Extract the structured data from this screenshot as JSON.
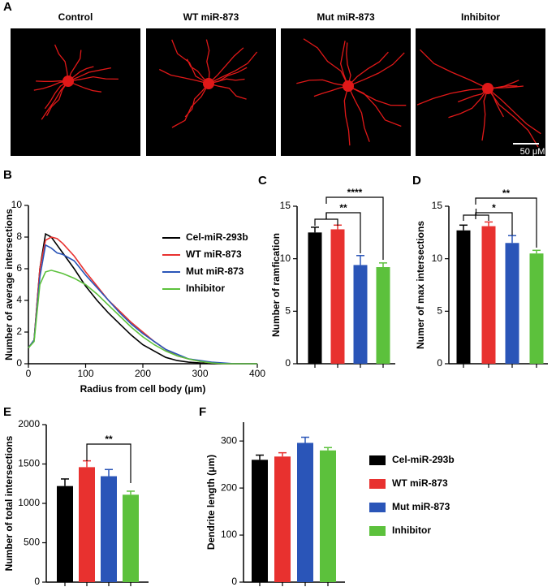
{
  "figure_a": {
    "panel_label": "A",
    "titles": [
      "Control",
      "WT miR-873",
      "Mut miR-873",
      "Inhibitor"
    ],
    "scale_bar": "50 μM"
  },
  "chart_data": [
    {
      "type": "line",
      "panel_label": "B",
      "x_label": "Radius from cell body (μm)",
      "y_label": "Number of  average intersections",
      "x": [
        0,
        10,
        20,
        30,
        40,
        50,
        60,
        80,
        100,
        120,
        140,
        160,
        180,
        200,
        220,
        240,
        260,
        280,
        300,
        320,
        340,
        360,
        380,
        400
      ],
      "series": [
        {
          "name": "Cel-miR-293b",
          "color": "#000000",
          "values": [
            1,
            1.5,
            6,
            8.2,
            8,
            7.5,
            7,
            6,
            4.9,
            4,
            3.2,
            2.5,
            1.8,
            1.2,
            0.8,
            0.4,
            0.2,
            0.1,
            0.05,
            0,
            0,
            0,
            0,
            0
          ]
        },
        {
          "name": "WT miR-873",
          "color": "#e8312f",
          "values": [
            1,
            1.5,
            6,
            7.8,
            8,
            7.9,
            7.6,
            6.8,
            5.8,
            4.9,
            4,
            3.3,
            2.6,
            2,
            1.4,
            0.9,
            0.5,
            0.3,
            0.15,
            0.05,
            0,
            0,
            0,
            0
          ]
        },
        {
          "name": "Mut miR-873",
          "color": "#2a55b8",
          "values": [
            1,
            1.5,
            5.5,
            7.5,
            7.3,
            7,
            6.9,
            6.5,
            5.6,
            4.8,
            4,
            3.2,
            2.5,
            1.9,
            1.4,
            0.9,
            0.6,
            0.3,
            0.2,
            0.1,
            0.05,
            0,
            0,
            0
          ]
        },
        {
          "name": "Inhibitor",
          "color": "#5cc13c",
          "values": [
            1,
            1.4,
            5,
            5.8,
            5.9,
            5.8,
            5.7,
            5.4,
            5,
            4.4,
            3.7,
            3,
            2.3,
            1.7,
            1.2,
            0.8,
            0.5,
            0.3,
            0.15,
            0.05,
            0,
            0,
            0,
            0
          ]
        }
      ],
      "xlim": [
        0,
        400
      ],
      "xticks": [
        0,
        100,
        200,
        300,
        400
      ],
      "ylim": [
        0,
        10
      ],
      "yticks": [
        0,
        2,
        4,
        6,
        8,
        10
      ]
    },
    {
      "type": "bar",
      "panel_label": "C",
      "y_label": "Number of ramfication",
      "categories": [
        null,
        null,
        null,
        null
      ],
      "values": [
        12.5,
        12.8,
        9.4,
        9.2
      ],
      "errors": [
        0.5,
        0.4,
        0.9,
        0.4
      ],
      "colors": [
        "#000000",
        "#e8312f",
        "#2a55b8",
        "#5cc13c"
      ],
      "ylim": [
        0,
        15
      ],
      "yticks": [
        0,
        5,
        10,
        15
      ],
      "annotations": [
        "**",
        "****"
      ]
    },
    {
      "type": "bar",
      "panel_label": "D",
      "y_label": "Numer of max intersections",
      "categories": [
        null,
        null,
        null,
        null
      ],
      "values": [
        12.7,
        13.1,
        11.5,
        10.5
      ],
      "errors": [
        0.5,
        0.4,
        0.7,
        0.3
      ],
      "colors": [
        "#000000",
        "#e8312f",
        "#2a55b8",
        "#5cc13c"
      ],
      "ylim": [
        0,
        15
      ],
      "yticks": [
        0,
        5,
        10,
        15
      ],
      "annotations": [
        "*",
        "**"
      ]
    },
    {
      "type": "bar",
      "panel_label": "E",
      "y_label": "Number of  total intersections",
      "categories": [
        null,
        null,
        null,
        null
      ],
      "values": [
        1220,
        1460,
        1345,
        1110
      ],
      "errors": [
        90,
        80,
        85,
        45
      ],
      "colors": [
        "#000000",
        "#e8312f",
        "#2a55b8",
        "#5cc13c"
      ],
      "ylim": [
        0,
        2000
      ],
      "yticks": [
        0,
        500,
        1000,
        1500,
        2000
      ],
      "annotations": [
        "**"
      ]
    },
    {
      "type": "bar",
      "panel_label": "F",
      "y_label": "Dendrite length (μm)",
      "categories": [
        null,
        null,
        null,
        null
      ],
      "values": [
        260,
        267,
        296,
        280
      ],
      "errors": [
        10,
        8,
        12,
        6
      ],
      "colors": [
        "#000000",
        "#e8312f",
        "#2a55b8",
        "#5cc13c"
      ],
      "ylim": [
        0,
        340
      ],
      "yticks": [
        0,
        100,
        200,
        300
      ],
      "legend": [
        {
          "name": "Cel-miR-293b",
          "color": "#000000"
        },
        {
          "name": "WT miR-873",
          "color": "#e8312f"
        },
        {
          "name": "Mut miR-873",
          "color": "#2a55b8"
        },
        {
          "name": "Inhibitor",
          "color": "#5cc13c"
        }
      ]
    }
  ]
}
